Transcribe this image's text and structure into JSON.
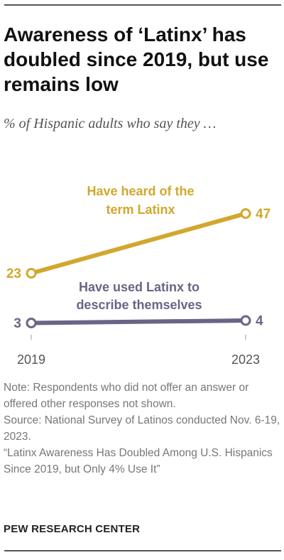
{
  "title": "Awareness of ‘Latinx’ has doubled since 2019, but use remains low",
  "subtitle": "% of Hispanic adults who say they …",
  "chart_data": {
    "type": "line",
    "x": [
      "2019",
      "2023"
    ],
    "series": [
      {
        "name": "Have heard of the term Latinx",
        "name_lines": [
          "Have heard of the",
          "term Latinx"
        ],
        "values": [
          23,
          47
        ],
        "color": "#d2a72d"
      },
      {
        "name": "Have used Latinx to describe themselves",
        "name_lines": [
          "Have used Latinx to",
          "describe themselves"
        ],
        "values": [
          3,
          4
        ],
        "color": "#6b6486"
      }
    ],
    "value_labels": [
      [
        "23",
        "47"
      ],
      [
        "3",
        "4"
      ]
    ],
    "ylim": [
      0,
      50
    ],
    "grid": false,
    "legend": "inline labels above lines",
    "axis_color": "#bbbbbb"
  },
  "notes": {
    "note": "Note: Respondents who did not offer an answer or offered other responses not shown.",
    "source": "Source: National Survey of Latinos conducted Nov. 6-19, 2023.",
    "report": "“Latinx Awareness Has Doubled Among U.S. Hispanics Since 2019, but Only 4% Use It”"
  },
  "credit": "PEW RESEARCH CENTER"
}
